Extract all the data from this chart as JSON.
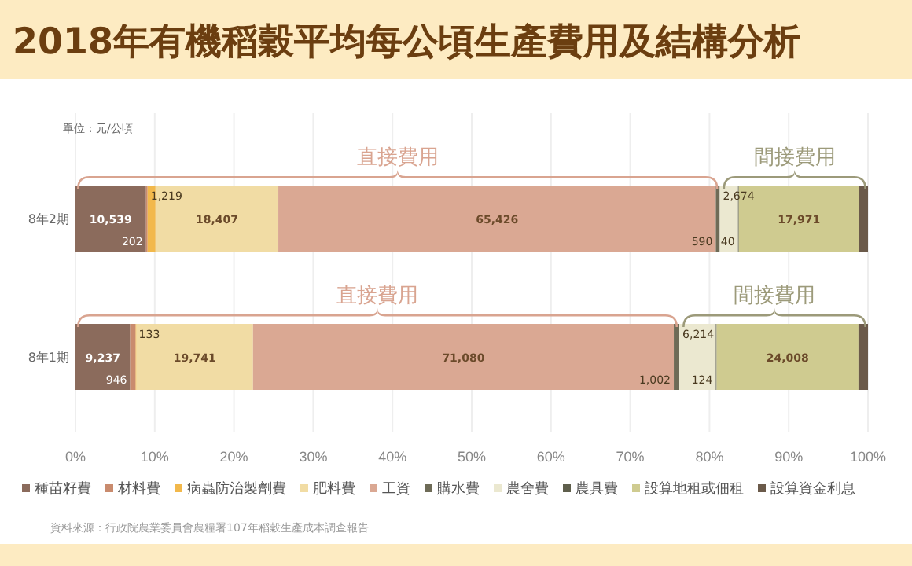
{
  "chart_data": {
    "type": "bar",
    "orientation": "horizontal",
    "stacked": true,
    "title": "2018年有機稻穀平均每公頃生產費用及結構分析",
    "categories": [
      "8年2期",
      "8年1期"
    ],
    "xlim": [
      0,
      100
    ],
    "xticks": [
      {
        "value": 0,
        "label": "0%"
      },
      {
        "value": 10,
        "label": "10%"
      },
      {
        "value": 20,
        "label": "20%"
      },
      {
        "value": 30,
        "label": "30%"
      },
      {
        "value": 40,
        "label": "40%"
      },
      {
        "value": 50,
        "label": "50%"
      },
      {
        "value": 60,
        "label": "60%"
      },
      {
        "value": 70,
        "label": "70%"
      },
      {
        "value": 80,
        "label": "80%"
      },
      {
        "value": 90,
        "label": "90%"
      },
      {
        "value": 100,
        "label": "100%"
      }
    ],
    "grid": "x",
    "legend": "bottom",
    "series": [
      {
        "name": "種苗籽費",
        "color": "#8b6b5c",
        "values": [
          8.9,
          6.9
        ]
      },
      {
        "name": "材料費",
        "color": "#c98b6e",
        "values": [
          0.2,
          0.7
        ]
      },
      {
        "name": "病蟲防治製劑費",
        "color": "#f2b84b",
        "values": [
          1.0,
          0.1
        ]
      },
      {
        "name": "肥料費",
        "color": "#f1dca4",
        "values": [
          15.5,
          14.7
        ]
      },
      {
        "name": "工資",
        "color": "#daa893",
        "values": [
          55.2,
          53.1
        ]
      },
      {
        "name": "購水費",
        "color": "#6e6b57",
        "values": [
          0.5,
          0.7
        ]
      },
      {
        "name": "農舍費",
        "color": "#ebe8d0",
        "values": [
          2.3,
          4.6
        ]
      },
      {
        "name": "農具費",
        "color": "#5f5f4c",
        "values": [
          0.1,
          0.1
        ]
      },
      {
        "name": "設算地租或佃租",
        "color": "#cfcb90",
        "values": [
          15.2,
          17.9
        ]
      },
      {
        "name": "設算資金利息",
        "color": "#6b5a4a",
        "values": [
          1.1,
          1.2
        ]
      }
    ],
    "annotations": [
      "單位：元/公頃",
      "直接費用",
      "間接費用",
      "直接費用",
      "間接費用",
      "資料來源：行政院農業委員會農糧署107年稻穀生產成本調查報告",
      "10,539",
      "202",
      "1,219",
      "18,407",
      "65,426",
      "590",
      "2,674",
      "40",
      "17,971",
      "9,237",
      "946",
      "133",
      "19,741",
      "71,080",
      "1,002",
      "6,214",
      "124",
      "24,008"
    ]
  }
}
